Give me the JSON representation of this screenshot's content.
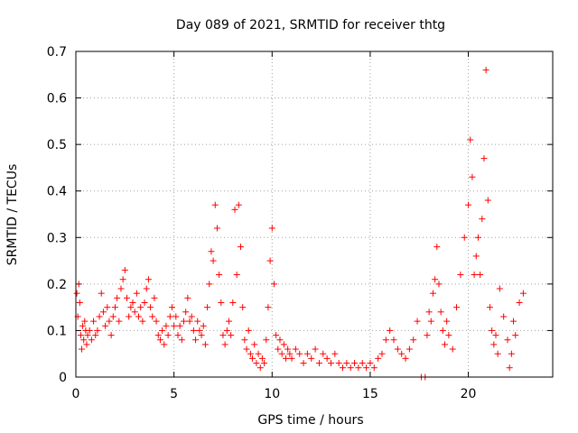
{
  "chart_data": {
    "type": "scatter",
    "title": "Day 089 of 2021, SRMTID for receiver thtg",
    "xlabel": "GPS time / hours",
    "ylabel": "SRMTID / TECUs",
    "xlim": [
      0,
      24.3
    ],
    "ylim": [
      0,
      0.7
    ],
    "xticks": [
      0,
      5,
      10,
      15,
      20
    ],
    "yticks": [
      0,
      0.1,
      0.2,
      0.3,
      0.4,
      0.5,
      0.6,
      0.7
    ],
    "xtick_labels": [
      "0",
      "5",
      "10",
      "15",
      "20"
    ],
    "ytick_labels": [
      "0",
      "0.1",
      "0.2",
      "0.3",
      "0.4",
      "0.5",
      "0.6",
      "0.7"
    ],
    "grid": true,
    "marker": "+",
    "color": "#ff0000",
    "series": [
      {
        "name": "SRMTID",
        "points": [
          [
            0.05,
            0.18
          ],
          [
            0.1,
            0.13
          ],
          [
            0.15,
            0.2
          ],
          [
            0.2,
            0.16
          ],
          [
            0.25,
            0.09
          ],
          [
            0.3,
            0.06
          ],
          [
            0.35,
            0.11
          ],
          [
            0.4,
            0.08
          ],
          [
            0.45,
            0.12
          ],
          [
            0.5,
            0.1
          ],
          [
            0.55,
            0.07
          ],
          [
            0.6,
            0.09
          ],
          [
            0.7,
            0.1
          ],
          [
            0.8,
            0.08
          ],
          [
            0.9,
            0.12
          ],
          [
            1.0,
            0.09
          ],
          [
            1.1,
            0.1
          ],
          [
            1.2,
            0.13
          ],
          [
            1.3,
            0.18
          ],
          [
            1.4,
            0.14
          ],
          [
            1.5,
            0.11
          ],
          [
            1.6,
            0.15
          ],
          [
            1.7,
            0.12
          ],
          [
            1.8,
            0.09
          ],
          [
            1.9,
            0.13
          ],
          [
            2.0,
            0.15
          ],
          [
            2.1,
            0.17
          ],
          [
            2.2,
            0.12
          ],
          [
            2.3,
            0.19
          ],
          [
            2.4,
            0.21
          ],
          [
            2.5,
            0.23
          ],
          [
            2.6,
            0.17
          ],
          [
            2.7,
            0.13
          ],
          [
            2.8,
            0.15
          ],
          [
            2.9,
            0.16
          ],
          [
            3.0,
            0.14
          ],
          [
            3.1,
            0.18
          ],
          [
            3.2,
            0.13
          ],
          [
            3.3,
            0.15
          ],
          [
            3.4,
            0.12
          ],
          [
            3.5,
            0.16
          ],
          [
            3.6,
            0.19
          ],
          [
            3.7,
            0.21
          ],
          [
            3.8,
            0.15
          ],
          [
            3.9,
            0.13
          ],
          [
            4.0,
            0.17
          ],
          [
            4.1,
            0.12
          ],
          [
            4.2,
            0.09
          ],
          [
            4.3,
            0.08
          ],
          [
            4.4,
            0.1
          ],
          [
            4.5,
            0.07
          ],
          [
            4.6,
            0.11
          ],
          [
            4.7,
            0.09
          ],
          [
            4.8,
            0.13
          ],
          [
            4.9,
            0.15
          ],
          [
            5.0,
            0.11
          ],
          [
            5.1,
            0.13
          ],
          [
            5.2,
            0.09
          ],
          [
            5.3,
            0.11
          ],
          [
            5.4,
            0.08
          ],
          [
            5.5,
            0.12
          ],
          [
            5.6,
            0.14
          ],
          [
            5.7,
            0.17
          ],
          [
            5.8,
            0.12
          ],
          [
            5.9,
            0.13
          ],
          [
            6.0,
            0.1
          ],
          [
            6.1,
            0.08
          ],
          [
            6.2,
            0.12
          ],
          [
            6.3,
            0.1
          ],
          [
            6.4,
            0.09
          ],
          [
            6.5,
            0.11
          ],
          [
            6.6,
            0.07
          ],
          [
            6.7,
            0.15
          ],
          [
            6.8,
            0.2
          ],
          [
            6.9,
            0.27
          ],
          [
            7.0,
            0.25
          ],
          [
            7.1,
            0.37
          ],
          [
            7.2,
            0.32
          ],
          [
            7.3,
            0.22
          ],
          [
            7.4,
            0.16
          ],
          [
            7.5,
            0.09
          ],
          [
            7.6,
            0.07
          ],
          [
            7.7,
            0.1
          ],
          [
            7.8,
            0.12
          ],
          [
            7.9,
            0.09
          ],
          [
            8.0,
            0.16
          ],
          [
            8.1,
            0.36
          ],
          [
            8.2,
            0.22
          ],
          [
            8.3,
            0.37
          ],
          [
            8.4,
            0.28
          ],
          [
            8.5,
            0.15
          ],
          [
            8.6,
            0.08
          ],
          [
            8.7,
            0.06
          ],
          [
            8.8,
            0.1
          ],
          [
            8.9,
            0.05
          ],
          [
            9.0,
            0.04
          ],
          [
            9.1,
            0.07
          ],
          [
            9.2,
            0.03
          ],
          [
            9.3,
            0.05
          ],
          [
            9.4,
            0.02
          ],
          [
            9.5,
            0.04
          ],
          [
            9.6,
            0.03
          ],
          [
            9.7,
            0.08
          ],
          [
            9.8,
            0.15
          ],
          [
            9.9,
            0.25
          ],
          [
            10.0,
            0.32
          ],
          [
            10.1,
            0.2
          ],
          [
            10.2,
            0.09
          ],
          [
            10.3,
            0.06
          ],
          [
            10.4,
            0.08
          ],
          [
            10.5,
            0.05
          ],
          [
            10.6,
            0.07
          ],
          [
            10.7,
            0.04
          ],
          [
            10.8,
            0.06
          ],
          [
            10.9,
            0.05
          ],
          [
            11.0,
            0.04
          ],
          [
            11.2,
            0.06
          ],
          [
            11.4,
            0.05
          ],
          [
            11.6,
            0.03
          ],
          [
            11.8,
            0.05
          ],
          [
            12.0,
            0.04
          ],
          [
            12.2,
            0.06
          ],
          [
            12.4,
            0.03
          ],
          [
            12.6,
            0.05
          ],
          [
            12.8,
            0.04
          ],
          [
            13.0,
            0.03
          ],
          [
            13.2,
            0.05
          ],
          [
            13.4,
            0.03
          ],
          [
            13.6,
            0.02
          ],
          [
            13.8,
            0.03
          ],
          [
            14.0,
            0.02
          ],
          [
            14.2,
            0.03
          ],
          [
            14.4,
            0.02
          ],
          [
            14.6,
            0.03
          ],
          [
            14.8,
            0.02
          ],
          [
            15.0,
            0.03
          ],
          [
            15.2,
            0.02
          ],
          [
            15.4,
            0.04
          ],
          [
            15.6,
            0.05
          ],
          [
            15.8,
            0.08
          ],
          [
            16.0,
            0.1
          ],
          [
            16.2,
            0.08
          ],
          [
            16.4,
            0.06
          ],
          [
            16.6,
            0.05
          ],
          [
            16.8,
            0.04
          ],
          [
            17.0,
            0.06
          ],
          [
            17.2,
            0.08
          ],
          [
            17.4,
            0.12
          ],
          [
            17.6,
            0.0
          ],
          [
            17.8,
            0.0
          ],
          [
            17.9,
            0.09
          ],
          [
            18.0,
            0.14
          ],
          [
            18.1,
            0.12
          ],
          [
            18.2,
            0.18
          ],
          [
            18.3,
            0.21
          ],
          [
            18.4,
            0.28
          ],
          [
            18.5,
            0.2
          ],
          [
            18.6,
            0.14
          ],
          [
            18.7,
            0.1
          ],
          [
            18.8,
            0.07
          ],
          [
            18.9,
            0.12
          ],
          [
            19.0,
            0.09
          ],
          [
            19.2,
            0.06
          ],
          [
            19.4,
            0.15
          ],
          [
            19.6,
            0.22
          ],
          [
            19.8,
            0.3
          ],
          [
            20.0,
            0.37
          ],
          [
            20.1,
            0.51
          ],
          [
            20.2,
            0.43
          ],
          [
            20.3,
            0.22
          ],
          [
            20.4,
            0.26
          ],
          [
            20.5,
            0.3
          ],
          [
            20.6,
            0.22
          ],
          [
            20.7,
            0.34
          ],
          [
            20.8,
            0.47
          ],
          [
            20.9,
            0.66
          ],
          [
            21.0,
            0.38
          ],
          [
            21.1,
            0.15
          ],
          [
            21.2,
            0.1
          ],
          [
            21.3,
            0.07
          ],
          [
            21.4,
            0.09
          ],
          [
            21.5,
            0.05
          ],
          [
            21.6,
            0.19
          ],
          [
            21.8,
            0.13
          ],
          [
            22.0,
            0.08
          ],
          [
            22.1,
            0.02
          ],
          [
            22.2,
            0.05
          ],
          [
            22.3,
            0.12
          ],
          [
            22.4,
            0.09
          ],
          [
            22.6,
            0.16
          ],
          [
            22.8,
            0.18
          ]
        ]
      }
    ]
  }
}
